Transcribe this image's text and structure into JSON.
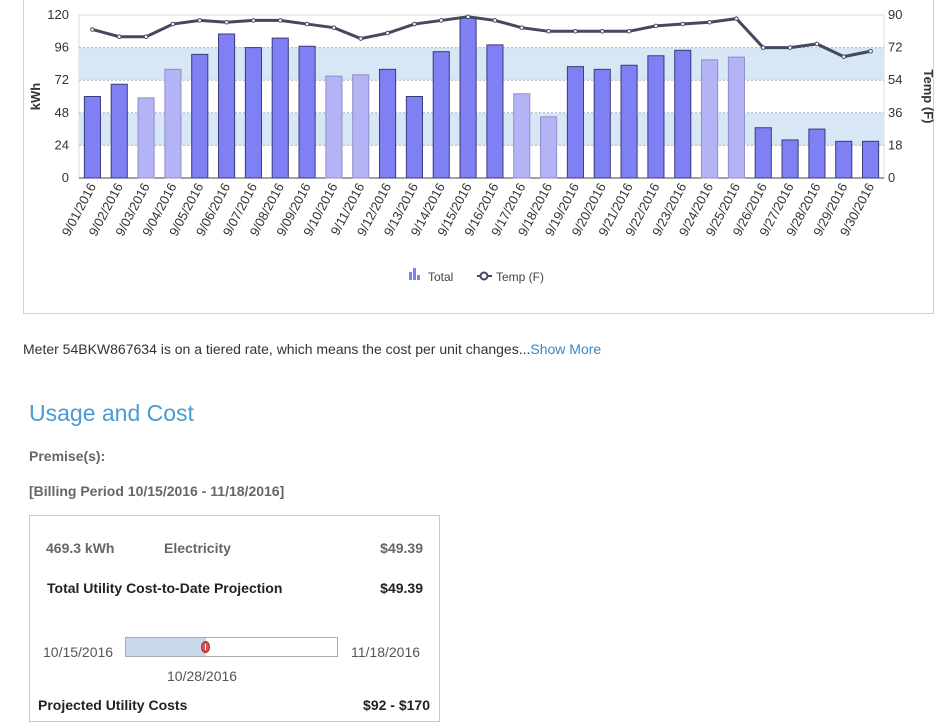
{
  "chart_data": {
    "type": "bar",
    "categories": [
      "9/01/2016",
      "9/02/2016",
      "9/03/2016",
      "9/04/2016",
      "9/05/2016",
      "9/06/2016",
      "9/07/2016",
      "9/08/2016",
      "9/09/2016",
      "9/10/2016",
      "9/11/2016",
      "9/12/2016",
      "9/13/2016",
      "9/14/2016",
      "9/15/2016",
      "9/16/2016",
      "9/17/2016",
      "9/18/2016",
      "9/19/2016",
      "9/20/2016",
      "9/21/2016",
      "9/22/2016",
      "9/23/2016",
      "9/24/2016",
      "9/25/2016",
      "9/26/2016",
      "9/27/2016",
      "9/28/2016",
      "9/29/2016",
      "9/30/2016"
    ],
    "series": [
      {
        "name": "Total",
        "type": "bar",
        "axis": "left",
        "values": [
          60,
          69,
          59,
          80,
          91,
          106,
          96,
          103,
          97,
          75,
          76,
          80,
          60,
          93,
          118,
          98,
          62,
          45,
          82,
          80,
          83,
          90,
          94,
          87,
          89,
          37,
          28,
          36,
          27,
          27
        ],
        "weekend": [
          false,
          false,
          true,
          true,
          false,
          false,
          false,
          false,
          false,
          true,
          true,
          false,
          false,
          false,
          false,
          false,
          true,
          true,
          false,
          false,
          false,
          false,
          false,
          true,
          true,
          false,
          false,
          false,
          false,
          false
        ]
      },
      {
        "name": "Temp (F)",
        "type": "line",
        "axis": "right",
        "values": [
          82,
          78,
          78,
          85,
          87,
          86,
          87,
          87,
          85,
          83,
          77,
          80,
          85,
          87,
          89,
          87,
          83,
          81,
          81,
          81,
          81,
          84,
          85,
          86,
          88,
          72,
          72,
          74,
          67,
          70
        ]
      }
    ],
    "ylabel": "kWh",
    "y2label": "Temp (F)",
    "ylim": [
      0,
      120
    ],
    "y2lim": [
      0,
      90
    ],
    "yticks": [
      0,
      24,
      48,
      72,
      96,
      120
    ],
    "y2ticks": [
      0,
      18,
      36,
      54,
      72,
      90
    ],
    "legend": [
      "Total",
      "Temp (F)"
    ],
    "legend_position": "bottom-center",
    "colors": {
      "weekday": "#8080f5",
      "weekend": "#b3b3f5",
      "line": "#434a60",
      "band": "#d7e7f5"
    }
  },
  "note": {
    "text": "Meter 54BKW867634 is on a tiered rate, which means the cost per unit changes...",
    "link": "Show More"
  },
  "usage": {
    "title": "Usage and Cost",
    "premise_label": "Premise(s):",
    "billing_period": "[Billing Period 10/15/2016 - 11/18/2016]"
  },
  "cost": {
    "kwh": "469.3 kWh",
    "type": "Electricity",
    "amount": "$49.39",
    "total_label": "Total Utility Cost-to-Date Projection",
    "total_amount": "$49.39",
    "start_date": "10/15/2016",
    "end_date": "11/18/2016",
    "current_date": "10/28/2016",
    "progress_fraction": 0.38,
    "projected_label": "Projected Utility Costs",
    "projected_range": "$92 - $170"
  }
}
